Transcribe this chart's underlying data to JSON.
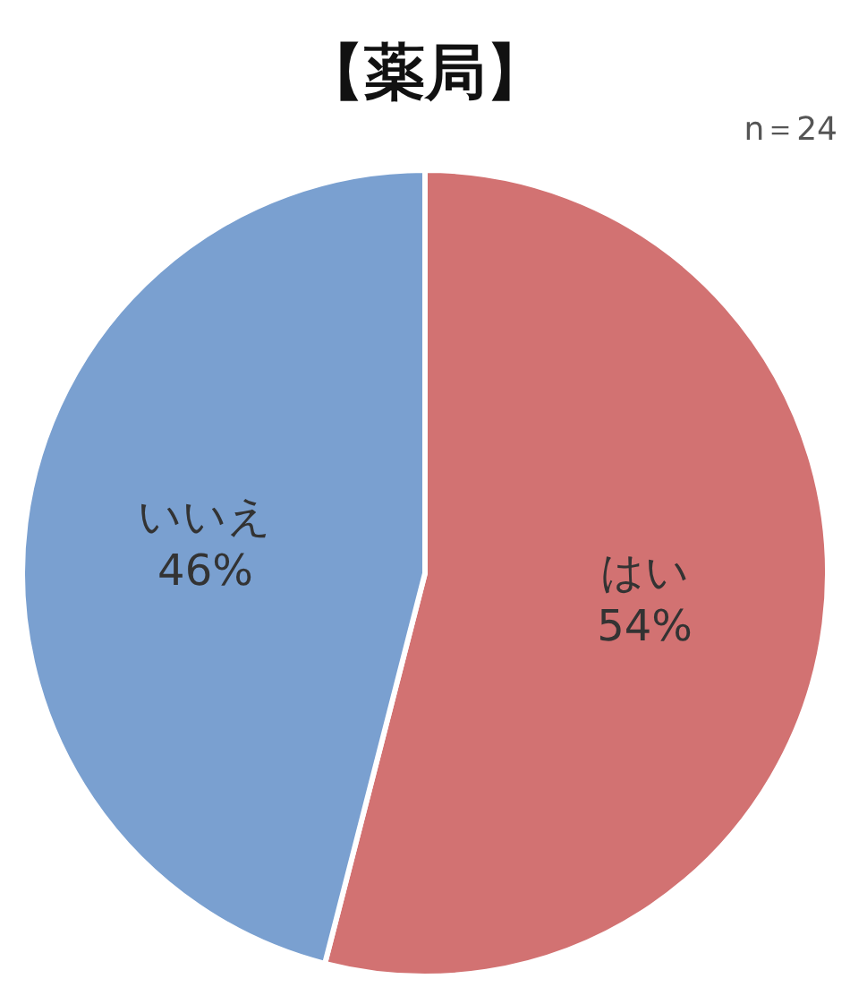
{
  "chart_data": {
    "type": "pie",
    "title": "【薬局】",
    "annotations": [
      "n＝24"
    ],
    "categories": [
      "はい",
      "いいえ"
    ],
    "values": [
      54,
      46
    ],
    "colors": [
      "#d27272",
      "#7aa0d0"
    ],
    "value_labels": [
      "54%",
      "46%"
    ]
  }
}
